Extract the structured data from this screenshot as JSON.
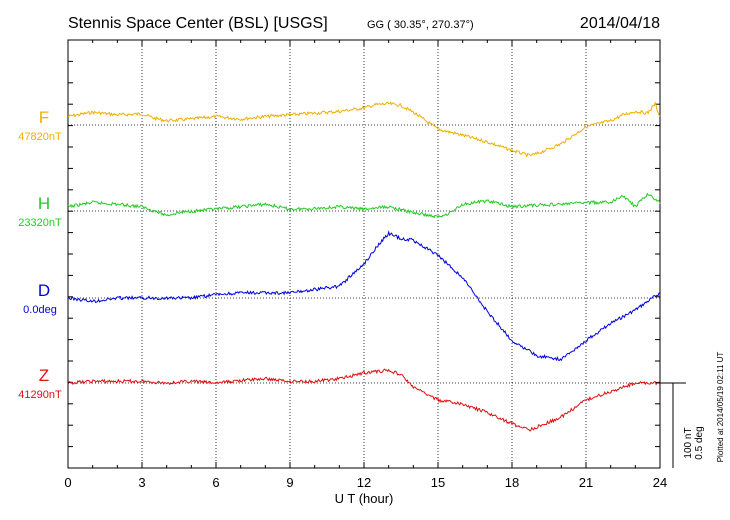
{
  "header": {
    "station": "Stennis Space Center (BSL)  [USGS]",
    "coords": "GG ( 30.35°, 270.37°)",
    "date": "2014/04/18"
  },
  "footer": {
    "plotted": "Plotted at 2014/05/19 02:11 UT"
  },
  "chart_data": {
    "type": "line",
    "xlabel": "U T (hour)",
    "xlim": [
      0,
      24
    ],
    "xticks": [
      0,
      3,
      6,
      9,
      12,
      15,
      18,
      21,
      24
    ],
    "scale_bar": {
      "label1": "100 nT",
      "label2": "0.5 deg"
    },
    "colors": {
      "F": "#f0b000",
      "H": "#22cc22",
      "D": "#0000dd",
      "Z": "#e01010"
    },
    "series": [
      {
        "name": "F",
        "baseline_label": "47820nT",
        "x": [
          0,
          1,
          2,
          3,
          3.5,
          4,
          5,
          6,
          7,
          8,
          9,
          10,
          11,
          12,
          12.5,
          13,
          13.5,
          14,
          15,
          16,
          17,
          18,
          18.7,
          19,
          20,
          21,
          22,
          22.5,
          23,
          23.5,
          23.8,
          24
        ],
        "y": [
          47830,
          47835,
          47832,
          47833,
          47828,
          47825,
          47827,
          47830,
          47827,
          47830,
          47832,
          47834,
          47836,
          47840,
          47844,
          47845,
          47843,
          47835,
          47815,
          47808,
          47800,
          47790,
          47784,
          47786,
          47798,
          47818,
          47825,
          47832,
          47836,
          47834,
          47845,
          47830
        ]
      },
      {
        "name": "H",
        "baseline_label": "23320nT",
        "x": [
          0,
          1,
          2,
          3,
          4,
          4.5,
          5,
          6,
          7,
          8,
          9,
          10,
          11,
          12,
          13,
          14,
          15,
          15.5,
          16,
          17,
          18,
          19,
          20,
          21,
          22,
          22.5,
          23,
          23.5,
          24
        ],
        "y": [
          23325,
          23330,
          23328,
          23325,
          23315,
          23318,
          23320,
          23322,
          23325,
          23328,
          23322,
          23323,
          23325,
          23322,
          23325,
          23318,
          23313,
          23318,
          23328,
          23332,
          23325,
          23327,
          23328,
          23330,
          23330,
          23338,
          23325,
          23340,
          23330
        ]
      },
      {
        "name": "D",
        "baseline_label": "0.0deg",
        "x": [
          0,
          1,
          2,
          3,
          4,
          5,
          6,
          7,
          8,
          9,
          10,
          11,
          12,
          12.5,
          13,
          13.5,
          14,
          15,
          16,
          17,
          18,
          19,
          20,
          21,
          22,
          23,
          24
        ],
        "y": [
          0.0,
          -0.02,
          0.0,
          0.0,
          0.0,
          0.0,
          0.02,
          0.03,
          0.03,
          0.03,
          0.05,
          0.07,
          0.2,
          0.3,
          0.38,
          0.35,
          0.34,
          0.25,
          0.12,
          -0.08,
          -0.25,
          -0.34,
          -0.36,
          -0.25,
          -0.15,
          -0.07,
          0.03
        ]
      },
      {
        "name": "Z",
        "baseline_label": "41290nT",
        "x": [
          0,
          1,
          2,
          3,
          4,
          5,
          6,
          7,
          8,
          9,
          10,
          11,
          12,
          13,
          13.5,
          14,
          15,
          16,
          17,
          18,
          18.7,
          19,
          20,
          21,
          22,
          23,
          24
        ],
        "y": [
          41290,
          41292,
          41292,
          41292,
          41290,
          41292,
          41290,
          41293,
          41295,
          41292,
          41292,
          41295,
          41302,
          41305,
          41300,
          41285,
          41270,
          41265,
          41255,
          41242,
          41235,
          41238,
          41250,
          41270,
          41280,
          41290,
          41290
        ]
      }
    ]
  }
}
